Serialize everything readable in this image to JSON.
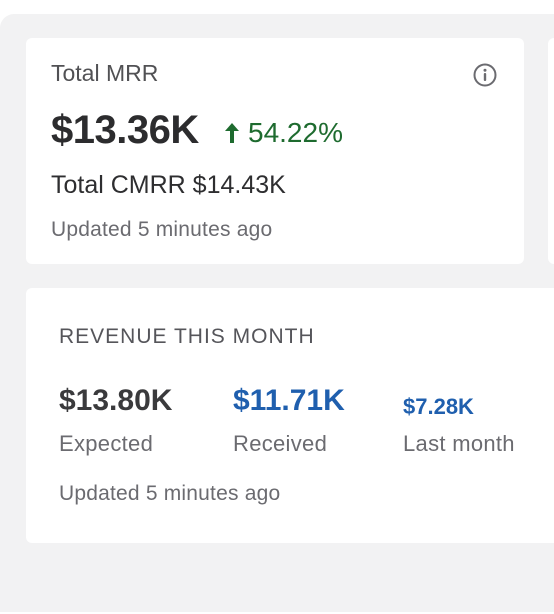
{
  "mrr_card": {
    "label": "Total MRR",
    "value": "$13.36K",
    "change": "54.22%",
    "cmrr": "Total CMRR $14.43K",
    "updated": "Updated 5 minutes ago",
    "info_icon": "info-circle-icon",
    "change_icon": "arrow-up-icon"
  },
  "revenue_card": {
    "title": "REVENUE THIS MONTH",
    "metrics": [
      {
        "value": "$13.80K",
        "label": "Expected"
      },
      {
        "value": "$11.71K",
        "label": "Received"
      },
      {
        "value": "$7.28K",
        "label": "Last month"
      }
    ],
    "updated": "Updated 5 minutes ago"
  },
  "colors": {
    "positive": "#1e6b2f",
    "link_value": "#1f5fae",
    "panel_bg": "#f2f2f3"
  }
}
